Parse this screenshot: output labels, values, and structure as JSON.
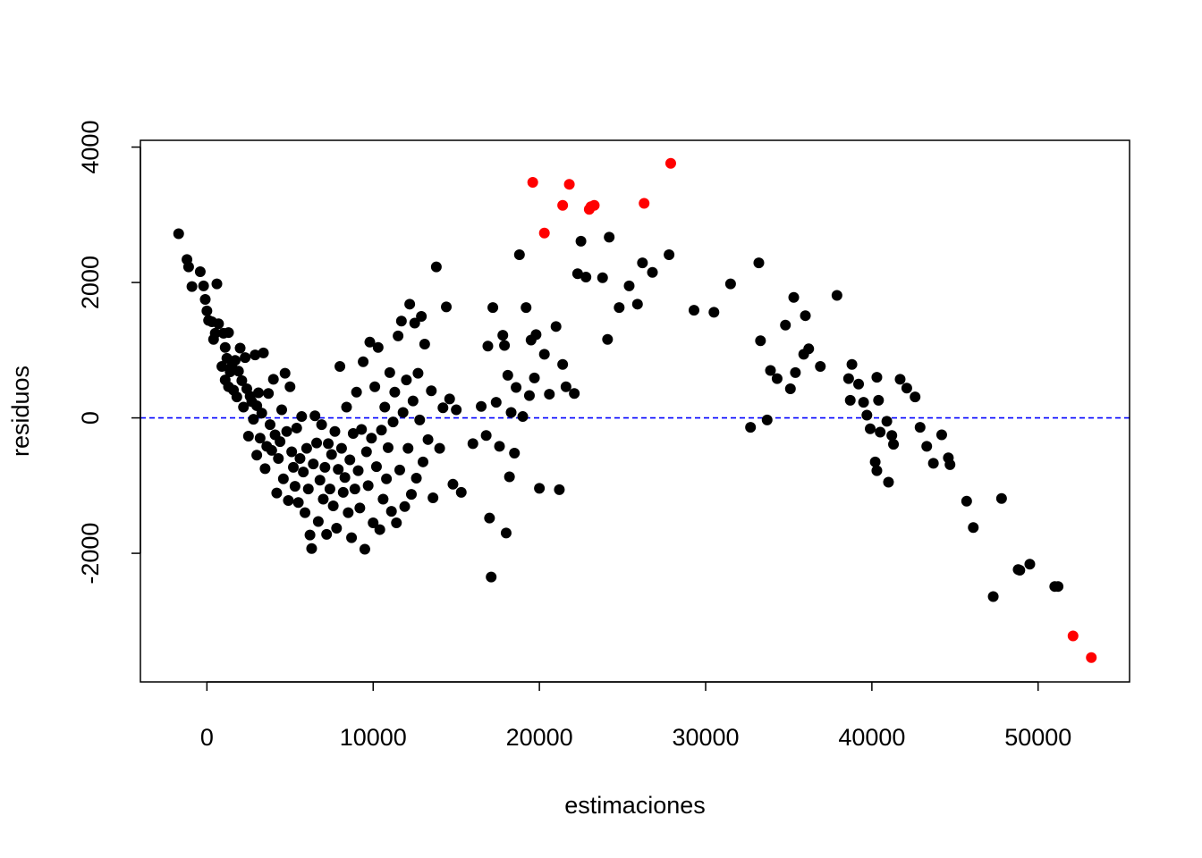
{
  "chart_data": {
    "type": "scatter",
    "title": "",
    "xlabel": "estimaciones",
    "ylabel": "residuos",
    "xlim": [
      -4000,
      55500
    ],
    "ylim": [
      -3900,
      4100
    ],
    "x_ticks": [
      0,
      10000,
      20000,
      30000,
      40000,
      50000
    ],
    "y_ticks": [
      -2000,
      0,
      2000,
      4000
    ],
    "x_tick_labels": [
      "0",
      "10000",
      "20000",
      "30000",
      "40000",
      "50000"
    ],
    "y_tick_labels": [
      "-2000",
      "0",
      "2000",
      "4000"
    ],
    "grid": false,
    "legend": "none",
    "reference_line": {
      "y": 0,
      "style": "dashed",
      "color": "#0000ff"
    },
    "colors": {
      "normal": "#000000",
      "highlight": "#ff0000",
      "frame": "#000000"
    },
    "series": [
      {
        "color": "#000000",
        "points": [
          [
            -1700,
            2720
          ],
          [
            -1200,
            2340
          ],
          [
            -1100,
            2230
          ],
          [
            -900,
            1940
          ],
          [
            -400,
            2160
          ],
          [
            -200,
            1950
          ],
          [
            -100,
            1750
          ],
          [
            0,
            1580
          ],
          [
            100,
            1440
          ],
          [
            300,
            1420
          ],
          [
            400,
            1160
          ],
          [
            500,
            1250
          ],
          [
            600,
            1980
          ],
          [
            700,
            1390
          ],
          [
            900,
            760
          ],
          [
            1000,
            1250
          ],
          [
            1100,
            1040
          ],
          [
            1100,
            560
          ],
          [
            1200,
            880
          ],
          [
            1300,
            1260
          ],
          [
            1300,
            460
          ],
          [
            1400,
            680
          ],
          [
            1500,
            760
          ],
          [
            1600,
            410
          ],
          [
            1700,
            850
          ],
          [
            1800,
            310
          ],
          [
            1900,
            690
          ],
          [
            2000,
            1030
          ],
          [
            2100,
            550
          ],
          [
            2200,
            160
          ],
          [
            2300,
            890
          ],
          [
            2400,
            430
          ],
          [
            2500,
            -270
          ],
          [
            2600,
            320
          ],
          [
            2700,
            240
          ],
          [
            2800,
            -20
          ],
          [
            2900,
            930
          ],
          [
            3000,
            180
          ],
          [
            3000,
            -550
          ],
          [
            3100,
            370
          ],
          [
            3200,
            -300
          ],
          [
            3300,
            70
          ],
          [
            3400,
            960
          ],
          [
            3500,
            -750
          ],
          [
            3600,
            -420
          ],
          [
            3700,
            360
          ],
          [
            3800,
            -100
          ],
          [
            3900,
            -480
          ],
          [
            4000,
            570
          ],
          [
            4100,
            -250
          ],
          [
            4200,
            -1110
          ],
          [
            4300,
            -600
          ],
          [
            4400,
            -350
          ],
          [
            4500,
            120
          ],
          [
            4600,
            -900
          ],
          [
            4700,
            660
          ],
          [
            4800,
            -200
          ],
          [
            4900,
            -1220
          ],
          [
            5000,
            460
          ],
          [
            5100,
            -500
          ],
          [
            5200,
            -730
          ],
          [
            5300,
            -1010
          ],
          [
            5400,
            -150
          ],
          [
            5500,
            -1250
          ],
          [
            5600,
            -600
          ],
          [
            5700,
            20
          ],
          [
            5800,
            -800
          ],
          [
            5900,
            -1400
          ],
          [
            6000,
            -450
          ],
          [
            6100,
            -1050
          ],
          [
            6200,
            -1730
          ],
          [
            6300,
            -1930
          ],
          [
            6400,
            -680
          ],
          [
            6500,
            30
          ],
          [
            6600,
            -370
          ],
          [
            6700,
            -1530
          ],
          [
            6800,
            -920
          ],
          [
            6900,
            -100
          ],
          [
            7000,
            -1200
          ],
          [
            7100,
            -730
          ],
          [
            7200,
            -1720
          ],
          [
            7300,
            -380
          ],
          [
            7400,
            -1050
          ],
          [
            7500,
            -540
          ],
          [
            7600,
            -1300
          ],
          [
            7700,
            -200
          ],
          [
            7800,
            -1630
          ],
          [
            7900,
            -760
          ],
          [
            8000,
            760
          ],
          [
            8100,
            -450
          ],
          [
            8200,
            -1100
          ],
          [
            8300,
            -880
          ],
          [
            8400,
            160
          ],
          [
            8500,
            -1400
          ],
          [
            8600,
            -620
          ],
          [
            8700,
            -1770
          ],
          [
            8800,
            -230
          ],
          [
            8900,
            -1050
          ],
          [
            9000,
            380
          ],
          [
            9100,
            -780
          ],
          [
            9200,
            -1330
          ],
          [
            9300,
            -170
          ],
          [
            9400,
            830
          ],
          [
            9500,
            -1940
          ],
          [
            9600,
            -500
          ],
          [
            9700,
            -1000
          ],
          [
            9800,
            1120
          ],
          [
            9900,
            -300
          ],
          [
            10000,
            -1550
          ],
          [
            10100,
            460
          ],
          [
            10200,
            -720
          ],
          [
            10300,
            1040
          ],
          [
            10400,
            -1650
          ],
          [
            10500,
            -180
          ],
          [
            10600,
            -1200
          ],
          [
            10700,
            160
          ],
          [
            10800,
            -900
          ],
          [
            10900,
            -440
          ],
          [
            11000,
            670
          ],
          [
            11100,
            -1380
          ],
          [
            11200,
            -60
          ],
          [
            11300,
            380
          ],
          [
            11400,
            -1550
          ],
          [
            11500,
            1210
          ],
          [
            11600,
            -770
          ],
          [
            11700,
            1430
          ],
          [
            11800,
            80
          ],
          [
            11900,
            -1310
          ],
          [
            12000,
            560
          ],
          [
            12100,
            -450
          ],
          [
            12200,
            1680
          ],
          [
            12300,
            -1130
          ],
          [
            12400,
            250
          ],
          [
            12500,
            1400
          ],
          [
            12600,
            -890
          ],
          [
            12700,
            660
          ],
          [
            12800,
            -30
          ],
          [
            12900,
            1500
          ],
          [
            13000,
            -650
          ],
          [
            13100,
            1090
          ],
          [
            13300,
            -320
          ],
          [
            13500,
            400
          ],
          [
            13600,
            -1180
          ],
          [
            13800,
            2230
          ],
          [
            14000,
            -450
          ],
          [
            14200,
            150
          ],
          [
            14400,
            1640
          ],
          [
            14600,
            280
          ],
          [
            14800,
            -980
          ],
          [
            15000,
            120
          ],
          [
            15300,
            -1100
          ],
          [
            16000,
            -380
          ],
          [
            16500,
            170
          ],
          [
            16800,
            -260
          ],
          [
            16900,
            1060
          ],
          [
            17000,
            -1480
          ],
          [
            17100,
            -2350
          ],
          [
            17200,
            1630
          ],
          [
            17400,
            230
          ],
          [
            17600,
            -420
          ],
          [
            17800,
            1220
          ],
          [
            17900,
            1070
          ],
          [
            18000,
            -1700
          ],
          [
            18100,
            630
          ],
          [
            18200,
            -870
          ],
          [
            18300,
            80
          ],
          [
            18500,
            -520
          ],
          [
            18600,
            450
          ],
          [
            18800,
            2410
          ],
          [
            19000,
            20
          ],
          [
            19200,
            1630
          ],
          [
            19400,
            330
          ],
          [
            19500,
            1150
          ],
          [
            19700,
            590
          ],
          [
            19800,
            1230
          ],
          [
            20000,
            -1040
          ],
          [
            20300,
            940
          ],
          [
            20600,
            350
          ],
          [
            21000,
            1350
          ],
          [
            21200,
            -1060
          ],
          [
            21400,
            790
          ],
          [
            21600,
            460
          ],
          [
            22100,
            360
          ],
          [
            22300,
            2130
          ],
          [
            22500,
            2610
          ],
          [
            22800,
            2080
          ],
          [
            23800,
            2070
          ],
          [
            24100,
            1160
          ],
          [
            24200,
            2670
          ],
          [
            24800,
            1630
          ],
          [
            25400,
            1950
          ],
          [
            25900,
            1680
          ],
          [
            26200,
            2290
          ],
          [
            26800,
            2150
          ],
          [
            27800,
            2410
          ],
          [
            29300,
            1590
          ],
          [
            30500,
            1560
          ],
          [
            31500,
            1980
          ],
          [
            32700,
            -140
          ],
          [
            33200,
            2290
          ],
          [
            33300,
            1140
          ],
          [
            33700,
            -30
          ],
          [
            33900,
            700
          ],
          [
            34300,
            580
          ],
          [
            34800,
            1370
          ],
          [
            35100,
            430
          ],
          [
            35300,
            1780
          ],
          [
            35400,
            670
          ],
          [
            35900,
            940
          ],
          [
            36000,
            1510
          ],
          [
            36200,
            1020
          ],
          [
            36900,
            760
          ],
          [
            37900,
            1810
          ],
          [
            38600,
            580
          ],
          [
            38700,
            260
          ],
          [
            38800,
            790
          ],
          [
            39200,
            500
          ],
          [
            39500,
            230
          ],
          [
            39700,
            40
          ],
          [
            39900,
            -160
          ],
          [
            40200,
            -650
          ],
          [
            40300,
            -780
          ],
          [
            40300,
            600
          ],
          [
            40400,
            260
          ],
          [
            40500,
            -210
          ],
          [
            40900,
            -50
          ],
          [
            41000,
            -950
          ],
          [
            41200,
            -260
          ],
          [
            41300,
            -390
          ],
          [
            41700,
            570
          ],
          [
            42100,
            440
          ],
          [
            42600,
            310
          ],
          [
            42900,
            -140
          ],
          [
            43300,
            -420
          ],
          [
            43700,
            -670
          ],
          [
            44200,
            -250
          ],
          [
            44600,
            -590
          ],
          [
            44700,
            -690
          ],
          [
            45700,
            -1230
          ],
          [
            46100,
            -1620
          ],
          [
            47300,
            -2640
          ],
          [
            47800,
            -1190
          ],
          [
            48800,
            -2240
          ],
          [
            48900,
            -2250
          ],
          [
            49500,
            -2160
          ],
          [
            51000,
            -2490
          ],
          [
            51200,
            -2490
          ]
        ]
      },
      {
        "color": "#ff0000",
        "points": [
          [
            19600,
            3480
          ],
          [
            20300,
            2730
          ],
          [
            21400,
            3140
          ],
          [
            21800,
            3450
          ],
          [
            23000,
            3080
          ],
          [
            23100,
            3120
          ],
          [
            23300,
            3140
          ],
          [
            26300,
            3170
          ],
          [
            27900,
            3760
          ],
          [
            52100,
            -3220
          ],
          [
            53200,
            -3540
          ]
        ]
      }
    ]
  }
}
